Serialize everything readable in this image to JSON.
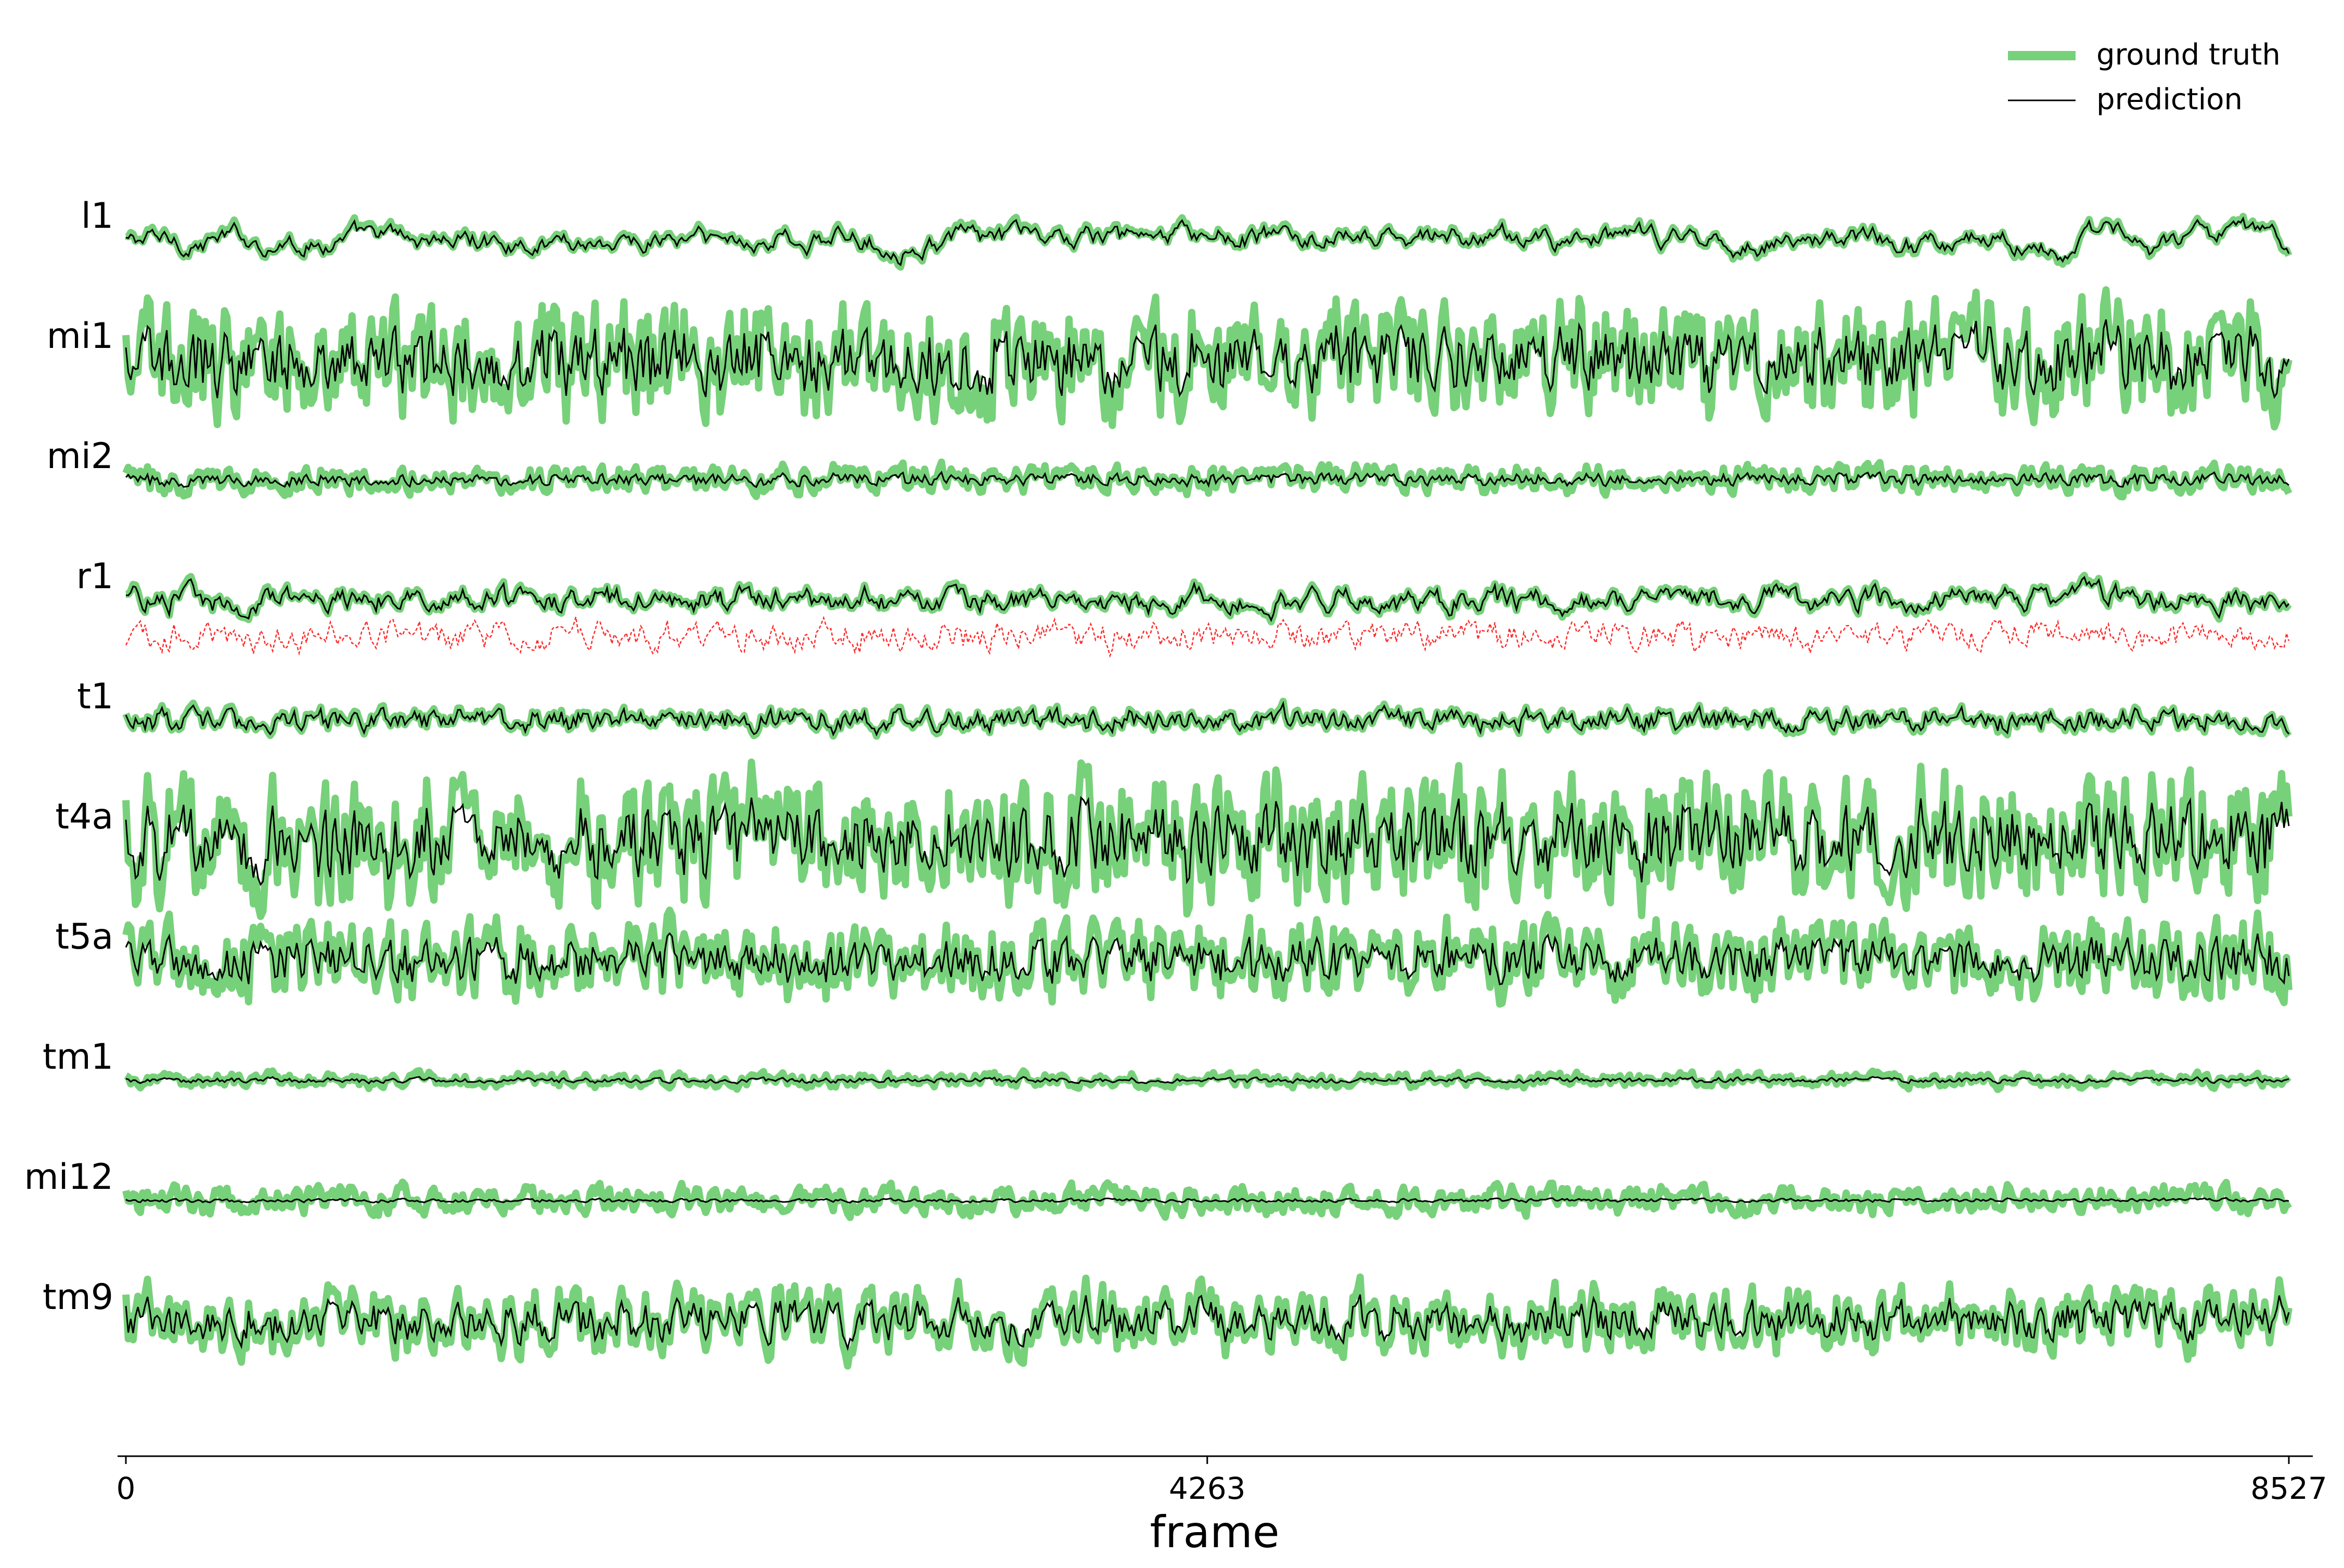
{
  "chart_data": {
    "type": "line",
    "x_axis": {
      "label": "frame",
      "range": [
        0,
        8527
      ],
      "ticks": [
        0,
        4263,
        8527
      ],
      "tick_labels": [
        "0",
        "4263",
        "8527"
      ]
    },
    "grid": false,
    "legend": {
      "placement": "top-right",
      "entries": [
        {
          "name": "ground truth",
          "color": "#77d17a",
          "style": "thick-line"
        },
        {
          "name": "prediction",
          "color": "#000000",
          "style": "thin-line"
        }
      ]
    },
    "extra_trace_color": "#ff2a2a",
    "traces": [
      {
        "label": "l1",
        "gt_amp": 1.0,
        "pred_amp": 0.9,
        "smooth": 0.85,
        "red": false
      },
      {
        "label": "mi1",
        "gt_amp": 1.5,
        "pred_amp": 0.85,
        "smooth": 0.35,
        "red": false
      },
      {
        "label": "mi2",
        "gt_amp": 0.35,
        "pred_amp": 0.15,
        "smooth": 0.35,
        "red": false
      },
      {
        "label": "r1",
        "gt_amp": 0.6,
        "pred_amp": 0.55,
        "smooth": 0.7,
        "red": true
      },
      {
        "label": "t1",
        "gt_amp": 0.45,
        "pred_amp": 0.4,
        "smooth": 0.6,
        "red": false
      },
      {
        "label": "t4a",
        "gt_amp": 1.7,
        "pred_amp": 0.95,
        "smooth": 0.35,
        "red": false
      },
      {
        "label": "t5a",
        "gt_amp": 1.0,
        "pred_amp": 0.55,
        "smooth": 0.35,
        "red": false
      },
      {
        "label": "tm1",
        "gt_amp": 0.22,
        "pred_amp": 0.08,
        "smooth": 0.5,
        "red": false
      },
      {
        "label": "mi12",
        "gt_amp": 0.4,
        "pred_amp": 0.05,
        "smooth": 0.45,
        "red": false
      },
      {
        "label": "tm9",
        "gt_amp": 1.0,
        "pred_amp": 0.6,
        "smooth": 0.45,
        "red": false
      }
    ]
  }
}
